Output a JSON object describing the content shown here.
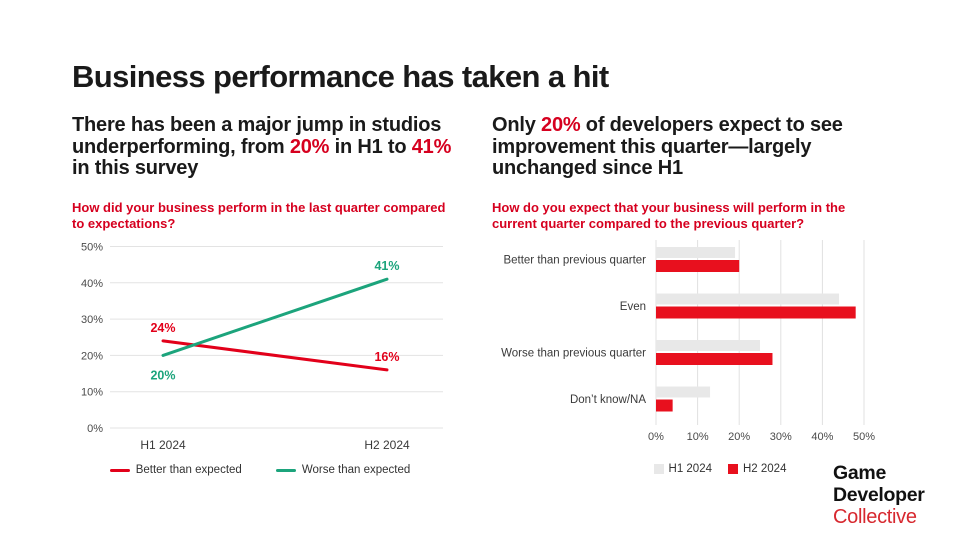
{
  "page": {
    "title": "Business performance has taken a hit"
  },
  "colors": {
    "accent_red": "#d6001f",
    "line_red": "#e2001a",
    "line_teal": "#1ca47c",
    "bar_gray": "#e8e8e8",
    "bar_red": "#e8101e",
    "text_dark": "#1a1a1a",
    "logo_red": "#d7282f"
  },
  "left": {
    "headline": {
      "p1": "There has been a major jump in studios underperforming, from ",
      "p2": "20%",
      "p3": " in H1 to ",
      "p4": "41%",
      "p5": " in this survey"
    },
    "question": "How did your business perform in the last quarter compared to expectations?",
    "legend": [
      {
        "label": "Better than expected",
        "color": "#e2001a"
      },
      {
        "label": "Worse than expected",
        "color": "#1ca47c"
      }
    ]
  },
  "right": {
    "headline": {
      "p1": "Only ",
      "p2": "20%",
      "p3": " of developers expect to see improvement this quarter—largely unchanged since H1"
    },
    "question": "How do you expect that your business will perform in the current quarter compared to the previous quarter?",
    "legend": [
      {
        "label": "H1 2024",
        "color": "#e8e8e8"
      },
      {
        "label": "H2 2024",
        "color": "#e8101e"
      }
    ]
  },
  "logo": {
    "line1": "Game",
    "line2": "Developer",
    "line3": "Collective"
  },
  "chart_data": [
    {
      "type": "line",
      "title": "How did your business perform in the last quarter compared to expectations?",
      "categories": [
        "H1 2024",
        "H2 2024"
      ],
      "series": [
        {
          "name": "Better than expected",
          "values": [
            24,
            16
          ],
          "color": "#e2001a"
        },
        {
          "name": "Worse than expected",
          "values": [
            20,
            41
          ],
          "color": "#1ca47c"
        }
      ],
      "point_labels": {
        "Better than expected": [
          "24%",
          "16%"
        ],
        "Worse than expected": [
          "20%",
          "41%"
        ]
      },
      "ylim": [
        0,
        50
      ],
      "yticks": [
        0,
        10,
        20,
        30,
        40,
        50
      ],
      "ytick_suffix": "%",
      "grid": "horizontal",
      "legend_position": "bottom"
    },
    {
      "type": "bar",
      "orientation": "horizontal",
      "title": "How do you expect that your business will perform in the current quarter compared to the previous quarter?",
      "categories": [
        "Better than previous quarter",
        "Even",
        "Worse than previous quarter",
        "Don’t know/NA"
      ],
      "series": [
        {
          "name": "H1 2024",
          "values": [
            19,
            44,
            25,
            13
          ],
          "color": "#e8e8e8"
        },
        {
          "name": "H2 2024",
          "values": [
            20,
            48,
            28,
            4
          ],
          "color": "#e8101e"
        }
      ],
      "xlim": [
        0,
        50
      ],
      "xticks": [
        0,
        10,
        20,
        30,
        40,
        50
      ],
      "xtick_suffix": "%",
      "grid": "vertical",
      "legend_position": "bottom"
    }
  ]
}
